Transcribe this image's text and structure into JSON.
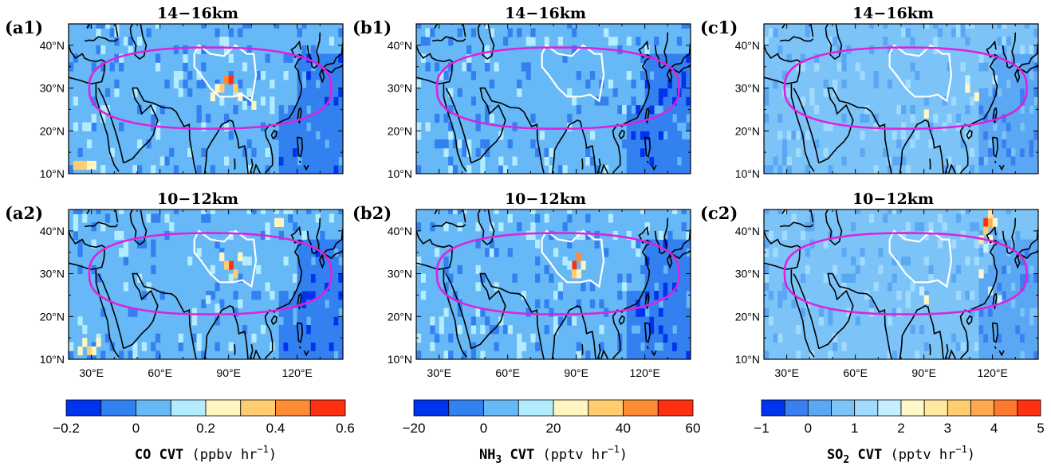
{
  "chart_data": {
    "type": "heatmap",
    "columns": [
      {
        "colorbar": {
          "variable": "CO",
          "units": "(ppbv hr",
          "units_exp": "−1",
          "units_close": ")",
          "levels": [
            -0.2,
            -0.1,
            0,
            0.1,
            0.2,
            0.3,
            0.4,
            0.5,
            0.6
          ],
          "tick_labels": [
            "−0.2",
            "0",
            "0.2",
            "0.4",
            "0.6"
          ],
          "colors": [
            "#0033ee",
            "#3380f0",
            "#66b8f6",
            "#b3ecff",
            "#fff5c0",
            "#ffcc70",
            "#ff8c35",
            "#ff3010"
          ]
        },
        "panels": [
          {
            "label": "(a1)",
            "title": "14−16km",
            "background_level": 2
          },
          {
            "label": "(a2)",
            "title": "10−12km",
            "background_level": 2
          }
        ]
      },
      {
        "colorbar": {
          "variable": "NH",
          "variable_sub": "3",
          "units": "(pptv hr",
          "units_exp": "−1",
          "units_close": ")",
          "levels": [
            -20,
            -10,
            0,
            10,
            20,
            30,
            40,
            50,
            60
          ],
          "tick_labels": [
            "−20",
            "0",
            "20",
            "40",
            "60"
          ],
          "colors": [
            "#0033ee",
            "#3380f0",
            "#66b8f6",
            "#b3ecff",
            "#fff5c0",
            "#ffcc70",
            "#ff8c35",
            "#ff3010"
          ]
        },
        "panels": [
          {
            "label": "(b1)",
            "title": "14−16km",
            "background_level": 2
          },
          {
            "label": "(b2)",
            "title": "10−12km",
            "background_level": 2
          }
        ]
      },
      {
        "colorbar": {
          "variable": "SO",
          "variable_sub": "2",
          "units": "(pptv hr",
          "units_exp": "−1",
          "units_close": ")",
          "levels": [
            -1,
            -0.5,
            0,
            0.5,
            1,
            1.5,
            2,
            2.5,
            3,
            3.5,
            4,
            4.5,
            5
          ],
          "tick_labels": [
            "−1",
            "0",
            "1",
            "2",
            "3",
            "4",
            "5"
          ],
          "colors": [
            "#0033ee",
            "#3a7ff0",
            "#5aa8f4",
            "#7cc4f8",
            "#a0daff",
            "#c4efff",
            "#fff8c8",
            "#ffe8a0",
            "#ffcc70",
            "#ffaa50",
            "#ff7830",
            "#ff3010"
          ]
        },
        "panels": [
          {
            "label": "(c1)",
            "title": "14−16km",
            "background_level": 3
          },
          {
            "label": "(c2)",
            "title": "10−12km",
            "background_level": 3
          }
        ]
      }
    ],
    "x_axis": {
      "range_lon": [
        20,
        140
      ],
      "ticks_lon": [
        30,
        60,
        90,
        120
      ],
      "tick_labels": [
        "30°E",
        "60°E",
        "90°E",
        "120°E"
      ]
    },
    "y_axis": {
      "range_lat": [
        10,
        45
      ],
      "ticks_lat": [
        10,
        20,
        30,
        40
      ],
      "tick_labels": [
        "10°N",
        "20°N",
        "30°N",
        "40°N"
      ]
    },
    "overlays": {
      "anticyclone_contour": {
        "color": "#dd22dd",
        "center_lon": 82,
        "center_lat": 30,
        "lon_half_width": 53,
        "lat_half_height": 9.5
      },
      "tibetan_plateau_contour": {
        "color": "#ffffff",
        "points_lon_lat": [
          [
            75,
            38
          ],
          [
            77,
            40
          ],
          [
            82,
            38
          ],
          [
            88,
            37.5
          ],
          [
            93,
            40
          ],
          [
            98,
            38
          ],
          [
            101,
            38
          ],
          [
            102,
            33
          ],
          [
            100,
            27
          ],
          [
            96,
            28.5
          ],
          [
            92,
            28
          ],
          [
            86,
            28
          ],
          [
            82,
            30
          ],
          [
            78,
            33
          ],
          [
            75,
            35
          ],
          [
            75,
            38
          ]
        ]
      },
      "coastline_color": "#000000"
    },
    "hotspots": {
      "a1": [
        [
          88,
          31,
          6
        ],
        [
          90,
          31,
          7
        ],
        [
          86,
          29,
          5
        ],
        [
          84,
          29,
          4
        ],
        [
          92,
          29,
          5
        ],
        [
          94,
          27,
          4
        ],
        [
          82,
          27,
          4
        ],
        [
          96,
          25,
          3
        ],
        [
          22,
          11,
          5
        ],
        [
          24,
          11,
          5
        ],
        [
          26,
          11,
          5
        ],
        [
          28,
          11,
          4
        ],
        [
          30,
          11,
          4
        ],
        [
          100,
          25,
          4
        ]
      ],
      "a2": [
        [
          90,
          31,
          7
        ],
        [
          88,
          31,
          5
        ],
        [
          92,
          29,
          5
        ],
        [
          86,
          33,
          4
        ],
        [
          94,
          33,
          4
        ],
        [
          110,
          41,
          4
        ],
        [
          112,
          41,
          4
        ],
        [
          26,
          13,
          4
        ],
        [
          28,
          11,
          5
        ],
        [
          30,
          11,
          4
        ],
        [
          24,
          11,
          4
        ],
        [
          32,
          13,
          4
        ],
        [
          80,
          23,
          3
        ],
        [
          84,
          21,
          3
        ]
      ],
      "b1": [],
      "b2": [
        [
          88,
          31,
          7
        ],
        [
          90,
          33,
          6
        ],
        [
          88,
          29,
          5
        ],
        [
          90,
          29,
          4
        ],
        [
          92,
          31,
          4
        ],
        [
          86,
          31,
          3
        ]
      ],
      "c1": [
        [
          108,
          29,
          6
        ],
        [
          108,
          31,
          5
        ],
        [
          90,
          23,
          6
        ],
        [
          120,
          31,
          5
        ],
        [
          112,
          27,
          6
        ]
      ],
      "c2": [
        [
          116,
          41,
          11
        ],
        [
          118,
          41,
          9
        ],
        [
          116,
          39,
          8
        ],
        [
          114,
          37,
          7
        ],
        [
          118,
          37,
          6
        ],
        [
          116,
          35,
          5
        ],
        [
          118,
          43,
          7
        ],
        [
          120,
          41,
          6
        ],
        [
          88,
          25,
          5
        ],
        [
          90,
          23,
          6
        ],
        [
          118,
          25,
          5
        ],
        [
          122,
          23,
          5
        ],
        [
          114,
          29,
          6
        ]
      ]
    }
  }
}
